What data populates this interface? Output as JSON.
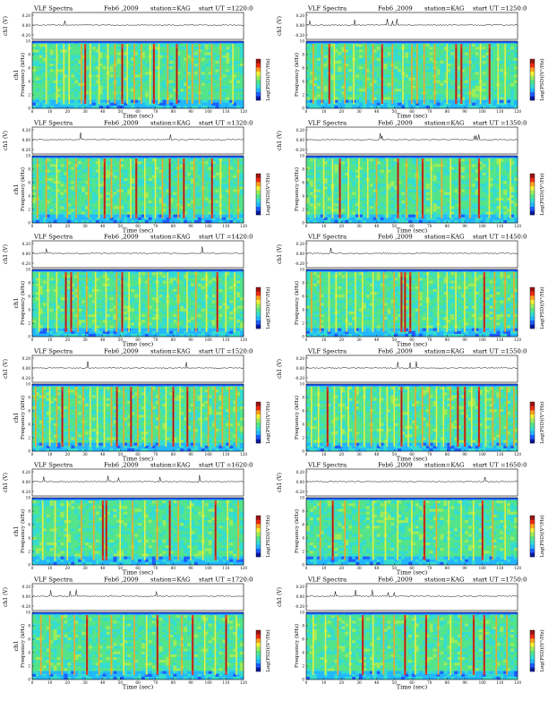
{
  "page": {
    "background": "#ffffff"
  },
  "colormap": [
    "#0b1aa0",
    "#1e5cff",
    "#23b7ff",
    "#35dcd0",
    "#54e48a",
    "#9cec5a",
    "#f5ee3a",
    "#ffa21e",
    "#ee2a12",
    "#9e1410"
  ],
  "chart_data": [
    {
      "type": "heatmap",
      "title": "VLF Spectra",
      "date": "Feb6 ,2009",
      "station": "station=KAG",
      "start": "start  UT  =1220:0",
      "xlabel": "Time  (sec)",
      "ylabel": "Frequency  (kHz)",
      "ylabel_ch": "ch1",
      "trace_label": "ch1 (V)",
      "cbar_label": "Log(PSD)(V²/Hz)",
      "cbar_ticks": [
        "",
        "-"
      ],
      "xlim": [
        0,
        120
      ],
      "ylim": [
        0,
        10
      ],
      "xticks": [
        "0",
        "10",
        "20",
        "30",
        "40",
        "50",
        "60",
        "70",
        "80",
        "90",
        "100",
        "110",
        "120"
      ],
      "yticks": [
        "0",
        "2",
        "4",
        "6",
        "8",
        "10"
      ],
      "trace_ticks": [
        "0.20",
        "0.00",
        "-0.20"
      ],
      "bursts": [
        8,
        14,
        18,
        21,
        28,
        30,
        33,
        38,
        43,
        47,
        51,
        54,
        58,
        62,
        67,
        69,
        72,
        77,
        82,
        88,
        91,
        95,
        102,
        107,
        114
      ],
      "intense": [
        30,
        51,
        69,
        82
      ]
    },
    {
      "type": "heatmap",
      "title": "VLF Spectra",
      "date": "Feb6 ,2009",
      "station": "station=KAG",
      "start": "start  UT  =1250:0",
      "xlabel": "Time  (sec)",
      "ylabel": "Frequency  (kHz)",
      "ylabel_ch": "",
      "trace_label": "ch1 (V)",
      "cbar_label": "Log(PSD)(V²/Hz)",
      "cbar_ticks": [
        "",
        "-"
      ],
      "xlim": [
        0,
        120
      ],
      "ylim": [
        0,
        10
      ],
      "xticks": [
        "0",
        "10",
        "20",
        "30",
        "40",
        "50",
        "60",
        "70",
        "80",
        "90",
        "100",
        "110",
        "120"
      ],
      "yticks": [
        "0",
        "2",
        "4",
        "6",
        "8",
        "10"
      ],
      "trace_ticks": [
        "0.20",
        "0.00",
        "-0.20"
      ],
      "bursts": [
        4,
        9,
        13,
        16,
        22,
        27,
        34,
        38,
        43,
        49,
        55,
        60,
        63,
        67,
        73,
        80,
        85,
        88,
        93,
        99,
        104,
        109,
        113
      ],
      "intense": [
        13,
        43,
        85,
        88,
        104
      ]
    },
    {
      "type": "heatmap",
      "title": "VLF Spectra",
      "date": "Feb6 ,2009",
      "station": "station=KAG",
      "start": "start  UT  =1320:0",
      "xlabel": "Time  (sec)",
      "ylabel": "Frequency  (kHz)",
      "ylabel_ch": "ch1",
      "trace_label": "ch1 (V)",
      "cbar_label": "Log(PSD)(V²/Hz)",
      "cbar_ticks": [
        "",
        "-"
      ],
      "xlim": [
        0,
        120
      ],
      "ylim": [
        0,
        10
      ],
      "xticks": [
        "0",
        "10",
        "20",
        "30",
        "40",
        "50",
        "60",
        "70",
        "80",
        "90",
        "100",
        "110",
        "120"
      ],
      "yticks": [
        "0",
        "2",
        "4",
        "6",
        "8",
        "10"
      ],
      "trace_ticks": [
        "0.20",
        "0.00",
        "-0.20"
      ],
      "bursts": [
        3,
        8,
        14,
        20,
        25,
        32,
        38,
        41,
        45,
        50,
        56,
        59,
        64,
        70,
        74,
        78,
        83,
        86,
        92,
        97,
        102,
        107,
        112,
        117
      ],
      "intense": [
        41,
        59,
        78,
        86,
        102
      ]
    },
    {
      "type": "heatmap",
      "title": "VLF Spectra",
      "date": "Feb6 ,2009",
      "station": "station=KAG",
      "start": "start  UT  =1350:0",
      "xlabel": "Time  (sec)",
      "ylabel": "Frequency  (kHz)",
      "ylabel_ch": "",
      "trace_label": "ch1 (V)",
      "cbar_label": "Log(PSD)(V²/Hz)",
      "cbar_ticks": [
        "",
        "-"
      ],
      "xlim": [
        0,
        120
      ],
      "ylim": [
        0,
        10
      ],
      "xticks": [
        "0",
        "10",
        "20",
        "30",
        "40",
        "50",
        "60",
        "70",
        "80",
        "90",
        "100",
        "110",
        "120"
      ],
      "yticks": [
        "0",
        "2",
        "4",
        "6",
        "8",
        "10"
      ],
      "trace_ticks": [
        "0.20",
        "0.00",
        "-0.20"
      ],
      "bursts": [
        5,
        10,
        15,
        19,
        24,
        30,
        35,
        40,
        46,
        52,
        57,
        63,
        66,
        71,
        77,
        82,
        87,
        93,
        98,
        104,
        110,
        116
      ],
      "intense": [
        19,
        52,
        66,
        87,
        98
      ]
    },
    {
      "type": "heatmap",
      "title": "VLF Spectra",
      "date": "Feb6 ,2009",
      "station": "station=KAG",
      "start": "start  UT  =1420:0",
      "xlabel": "Time  (sec)",
      "ylabel": "Frequency  (kHz)",
      "ylabel_ch": "ch1",
      "trace_label": "ch1 (V)",
      "cbar_label": "Log(PSD)(V²/Hz)",
      "cbar_ticks": [
        "",
        "-"
      ],
      "xlim": [
        0,
        120
      ],
      "ylim": [
        0,
        10
      ],
      "xticks": [
        "0",
        "10",
        "20",
        "30",
        "40",
        "50",
        "60",
        "70",
        "80",
        "90",
        "100",
        "110",
        "120"
      ],
      "yticks": [
        "0",
        "2",
        "4",
        "6",
        "8",
        "10"
      ],
      "trace_ticks": [
        "0.20",
        "0.00",
        "-0.20"
      ],
      "bursts": [
        4,
        9,
        14,
        19,
        22,
        26,
        31,
        36,
        42,
        48,
        51,
        55,
        61,
        66,
        71,
        77,
        83,
        88,
        93,
        99,
        105,
        110,
        115
      ],
      "intense": [
        19,
        22,
        51,
        105
      ]
    },
    {
      "type": "heatmap",
      "title": "VLF Spectra",
      "date": "Feb6 ,2009",
      "station": "station=KAG",
      "start": "start  UT  =1450:0",
      "xlabel": "Time  (sec)",
      "ylabel": "Frequency  (kHz)",
      "ylabel_ch": "",
      "trace_label": "ch1 (V)",
      "cbar_label": "Log(PSD)(V²/Hz)",
      "cbar_ticks": [
        "",
        "-"
      ],
      "xlim": [
        0,
        120
      ],
      "ylim": [
        0,
        10
      ],
      "xticks": [
        "0",
        "10",
        "20",
        "30",
        "40",
        "50",
        "60",
        "70",
        "80",
        "90",
        "100",
        "110",
        "120"
      ],
      "yticks": [
        "0",
        "2",
        "4",
        "6",
        "8",
        "10"
      ],
      "trace_ticks": [
        "0.20",
        "0.00",
        "-0.20"
      ],
      "bursts": [
        3,
        8,
        13,
        17,
        23,
        28,
        32,
        38,
        44,
        50,
        54,
        56,
        59,
        64,
        69,
        75,
        80,
        85,
        90,
        96,
        101,
        107,
        113,
        118
      ],
      "intense": [
        54,
        56,
        59,
        101
      ]
    },
    {
      "type": "heatmap",
      "title": "VLF Spectra",
      "date": "Feb6 ,2009",
      "station": "station=KAG",
      "start": "start  UT  =1520:0",
      "xlabel": "Time  (sec)",
      "ylabel": "Frequency  (kHz)",
      "ylabel_ch": "ch1",
      "trace_label": "ch1 (V)",
      "cbar_label": "Log(PSD)(V²/Hz)",
      "cbar_ticks": [
        "",
        "-"
      ],
      "xlim": [
        0,
        120
      ],
      "ylim": [
        0,
        10
      ],
      "xticks": [
        "0",
        "10",
        "20",
        "30",
        "40",
        "50",
        "60",
        "70",
        "80",
        "90",
        "100",
        "110",
        "120"
      ],
      "yticks": [
        "0",
        "2",
        "4",
        "6",
        "8",
        "10"
      ],
      "trace_ticks": [
        "0.20",
        "0.00",
        "-0.20"
      ],
      "bursts": [
        2,
        6,
        10,
        14,
        17,
        21,
        25,
        29,
        33,
        37,
        41,
        45,
        48,
        52,
        56,
        60,
        64,
        68,
        72,
        76,
        80,
        84,
        88,
        92,
        96,
        100,
        104,
        108,
        112,
        116
      ],
      "intense": [
        17,
        48,
        56,
        80,
        88
      ]
    },
    {
      "type": "heatmap",
      "title": "VLF Spectra",
      "date": "Feb6 ,2009",
      "station": "station=KAG",
      "start": "start  UT  =1550:0",
      "xlabel": "Time  (sec)",
      "ylabel": "Frequency  (kHz)",
      "ylabel_ch": "",
      "trace_label": "ch1 (V)",
      "cbar_label": "Log(PSD)(V²/Hz)",
      "cbar_ticks": [
        "",
        "-"
      ],
      "xlim": [
        0,
        120
      ],
      "ylim": [
        0,
        10
      ],
      "xticks": [
        "0",
        "10",
        "20",
        "30",
        "40",
        "50",
        "60",
        "70",
        "80",
        "90",
        "100",
        "110",
        "120"
      ],
      "yticks": [
        "0",
        "2",
        "4",
        "6",
        "8",
        "10"
      ],
      "trace_ticks": [
        "0.20",
        "0.00",
        "-0.20"
      ],
      "bursts": [
        3,
        7,
        12,
        16,
        20,
        24,
        28,
        33,
        37,
        42,
        46,
        50,
        54,
        58,
        62,
        66,
        70,
        74,
        78,
        82,
        86,
        90,
        94,
        98,
        102,
        106,
        110,
        114,
        118
      ],
      "intense": [
        12,
        54,
        86,
        90,
        98
      ]
    },
    {
      "type": "heatmap",
      "title": "VLF Spectra",
      "date": "Feb6 ,2009",
      "station": "station=KAG",
      "start": "start  UT  =1620:0",
      "xlabel": "Time  (sec)",
      "ylabel": "Frequency  (kHz)",
      "ylabel_ch": "ch1",
      "trace_label": "ch1 (V)",
      "cbar_label": "Log(PSD)(V²/Hz)",
      "cbar_ticks": [
        "",
        "-"
      ],
      "xlim": [
        0,
        120
      ],
      "ylim": [
        0,
        10
      ],
      "xticks": [
        "0",
        "10",
        "20",
        "30",
        "40",
        "50",
        "60",
        "70",
        "80",
        "90",
        "100",
        "110",
        "120"
      ],
      "yticks": [
        "0",
        "2",
        "4",
        "6",
        "8",
        "10"
      ],
      "trace_ticks": [
        "0.20",
        "0.00",
        "-0.20"
      ],
      "bursts": [
        6,
        13,
        20,
        28,
        35,
        40,
        42,
        50,
        57,
        64,
        71,
        78,
        83,
        90,
        97,
        104,
        111,
        117
      ],
      "intense": [
        40,
        42,
        78,
        104
      ]
    },
    {
      "type": "heatmap",
      "title": "VLF Spectra",
      "date": "Feb6 ,2009",
      "station": "station=KAG",
      "start": "start  UT  =1650:0",
      "xlabel": "Time  (sec)",
      "ylabel": "Frequency  (kHz)",
      "ylabel_ch": "",
      "trace_label": "ch1 (V)",
      "cbar_label": "Log(PSD)(V²/Hz)",
      "cbar_ticks": [
        "",
        "-"
      ],
      "xlim": [
        0,
        120
      ],
      "ylim": [
        0,
        10
      ],
      "xticks": [
        "0",
        "10",
        "20",
        "30",
        "40",
        "50",
        "60",
        "70",
        "80",
        "90",
        "100",
        "110",
        "120"
      ],
      "yticks": [
        "0",
        "2",
        "4",
        "6",
        "8",
        "10"
      ],
      "trace_ticks": [
        "0.20",
        "0.00",
        "-0.20"
      ],
      "bursts": [
        8,
        15,
        22,
        30,
        38,
        45,
        52,
        60,
        67,
        74,
        81,
        88,
        95,
        100,
        106,
        113
      ],
      "intense": [
        15,
        67,
        100
      ]
    },
    {
      "type": "heatmap",
      "title": "VLF Spectra",
      "date": "Feb6 ,2009",
      "station": "station=KAG",
      "start": "start  UT  =1720:0",
      "xlabel": "Time  (sec)",
      "ylabel": "Frequency  (kHz)",
      "ylabel_ch": "ch1",
      "trace_label": "ch1 (V)",
      "cbar_label": "Log(PSD)(V²/Hz)",
      "cbar_ticks": [
        "",
        "-"
      ],
      "xlim": [
        0,
        120
      ],
      "ylim": [
        0,
        10
      ],
      "xticks": [
        "0",
        "10",
        "20",
        "30",
        "40",
        "50",
        "60",
        "70",
        "80",
        "90",
        "100",
        "110",
        "120"
      ],
      "yticks": [
        "0",
        "2",
        "4",
        "6",
        "8",
        "10"
      ],
      "trace_ticks": [
        "0.20",
        "0.00",
        "-0.20"
      ],
      "bursts": [
        5,
        10,
        17,
        24,
        31,
        38,
        45,
        52,
        58,
        65,
        71,
        78,
        85,
        91,
        98,
        104,
        110,
        116
      ],
      "intense": [
        31,
        71,
        91,
        110
      ]
    },
    {
      "type": "heatmap",
      "title": "VLF Spectra",
      "date": "Feb6 ,2009",
      "station": "station=KAG",
      "start": "start  UT  =1750:0",
      "xlabel": "Time  (sec)",
      "ylabel": "Frequency  (kHz)",
      "ylabel_ch": "",
      "trace_label": "ch1 (V)",
      "cbar_label": "Log(PSD)(V²/Hz)",
      "cbar_ticks": [
        "",
        "-"
      ],
      "xlim": [
        0,
        120
      ],
      "ylim": [
        0,
        10
      ],
      "xticks": [
        "0",
        "10",
        "20",
        "30",
        "40",
        "50",
        "60",
        "70",
        "80",
        "90",
        "100",
        "110",
        "120"
      ],
      "yticks": [
        "0",
        "2",
        "4",
        "6",
        "8",
        "10"
      ],
      "trace_ticks": [
        "0.20",
        "0.00",
        "-0.20"
      ],
      "bursts": [
        4,
        11,
        18,
        25,
        32,
        38,
        44,
        50,
        56,
        62,
        68,
        75,
        82,
        88,
        95,
        101,
        108,
        114
      ],
      "intense": [
        32,
        56,
        68,
        95,
        101
      ]
    }
  ]
}
